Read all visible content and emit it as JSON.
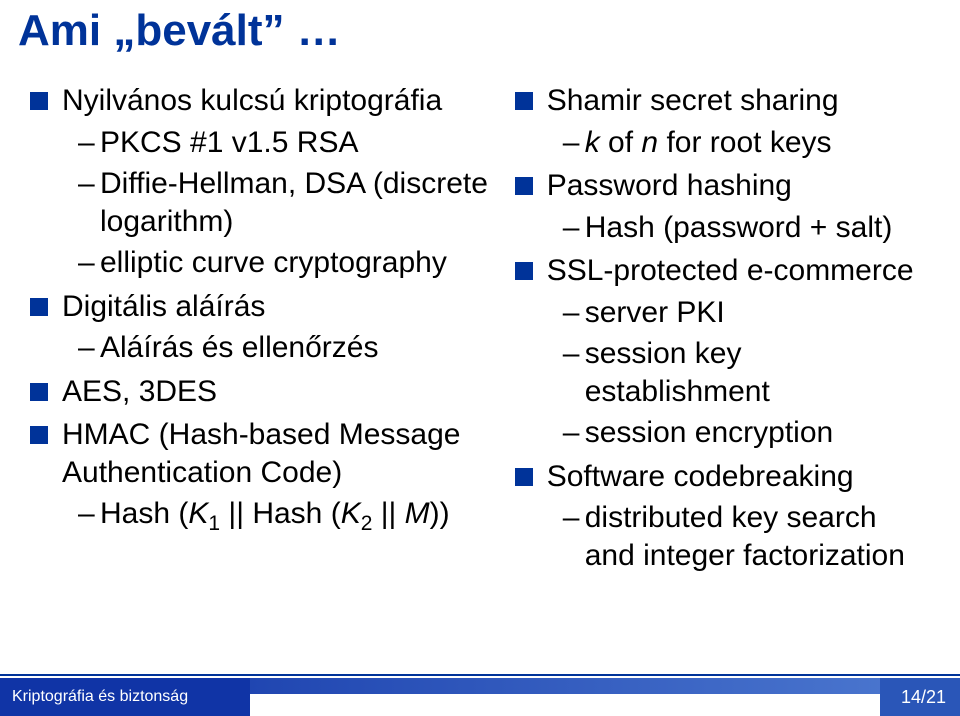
{
  "title": "Ami „bevált” …",
  "left": {
    "items": [
      {
        "label": "Nyilvános kulcsú kriptográfia",
        "sub": [
          "PKCS #1 v1.5 RSA",
          "Diffie-Hellman, DSA (discrete logarithm)",
          "elliptic curve cryptography"
        ]
      },
      {
        "label": "Digitális aláírás",
        "sub": [
          "Aláírás és ellenőrzés"
        ]
      },
      {
        "label": "AES, 3DES",
        "sub": []
      },
      {
        "label": "HMAC (Hash-based Message Authentication Code)",
        "sub": []
      }
    ],
    "hash_line_prefix": "Hash (",
    "hash_k1": "K",
    "hash_k1_sub": "1",
    "hash_mid": " || Hash (",
    "hash_k2": "K",
    "hash_k2_sub": "2",
    "hash_suffix": " || ",
    "hash_m": "M",
    "hash_end": "))"
  },
  "right": {
    "items": [
      {
        "label": "Shamir secret sharing",
        "sub_italic_prefix": "k",
        "sub_mid": " of ",
        "sub_italic_mid": "n",
        "sub_suffix": " for root keys"
      },
      {
        "label": "Password hashing",
        "sub": [
          "Hash (password + salt)"
        ]
      },
      {
        "label": "SSL-protected e-commerce",
        "sub": [
          "server PKI",
          "session key establishment",
          "session encryption"
        ]
      },
      {
        "label": "Software codebreaking",
        "sub": [
          "distributed key search and integer factorization"
        ]
      }
    ]
  },
  "footer": {
    "left": "Kriptográfia és biztonság",
    "right": "14/21"
  },
  "colors": {
    "title": "#003399",
    "bullet": "#003399",
    "footer_bar_start": "#1034a6",
    "footer_bar_end": "#4e7ad1"
  }
}
